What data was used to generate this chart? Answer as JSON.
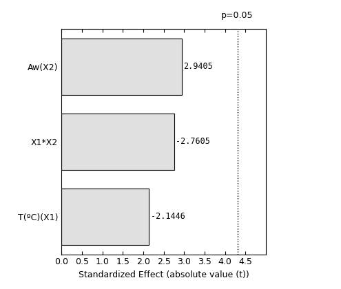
{
  "categories": [
    "T(ºC)(X1)",
    "X1*X2",
    "Aw(X2)"
  ],
  "values": [
    2.1446,
    2.7605,
    2.9405
  ],
  "labels": [
    "-2.1446",
    "-2.7605",
    "2.9405"
  ],
  "bar_color": "#e0e0e0",
  "bar_edgecolor": "#000000",
  "p_value_line": 4.3,
  "p_label": "p=0.05",
  "xlabel": "Standardized Effect (absolute value (t))",
  "xlim": [
    0,
    5.0
  ],
  "xticks": [
    0,
    0.5,
    1,
    1.5,
    2,
    2.5,
    3,
    3.5,
    4,
    4.5
  ],
  "background_color": "#ffffff",
  "fig_width": 4.95,
  "fig_height": 4.2,
  "dpi": 100,
  "bar_height": 0.75,
  "label_fontsize": 8.5,
  "ylabel_fontsize": 9,
  "xlabel_fontsize": 9,
  "p_label_fontsize": 9
}
